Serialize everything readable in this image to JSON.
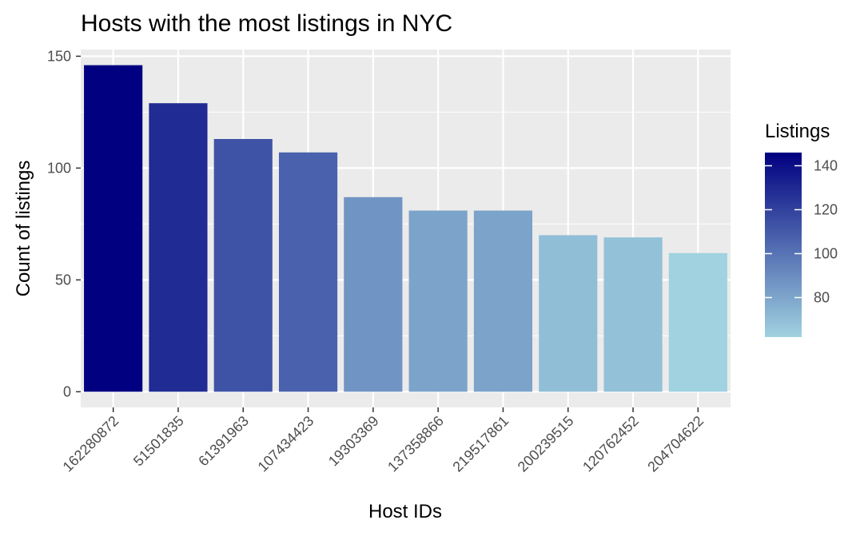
{
  "chart_data": {
    "type": "bar",
    "title": "Hosts with the most listings in NYC",
    "xlabel": "Host IDs",
    "ylabel": "Count of listings",
    "categories": [
      "162280872",
      "51501835",
      "61391963",
      "107434423",
      "19303369",
      "137358866",
      "219517861",
      "200239515",
      "120762452",
      "204704622"
    ],
    "values": [
      146,
      129,
      113,
      107,
      87,
      81,
      81,
      70,
      69,
      62
    ],
    "ylim": [
      -7,
      153
    ],
    "yticks": [
      0,
      50,
      100,
      150
    ],
    "grid": true,
    "legend": {
      "title": "Listings",
      "placement": "right",
      "ticks": [
        80,
        100,
        120,
        140
      ],
      "range": [
        62,
        146
      ],
      "color_low": "#a0d2e0",
      "color_high": "#000080"
    }
  }
}
